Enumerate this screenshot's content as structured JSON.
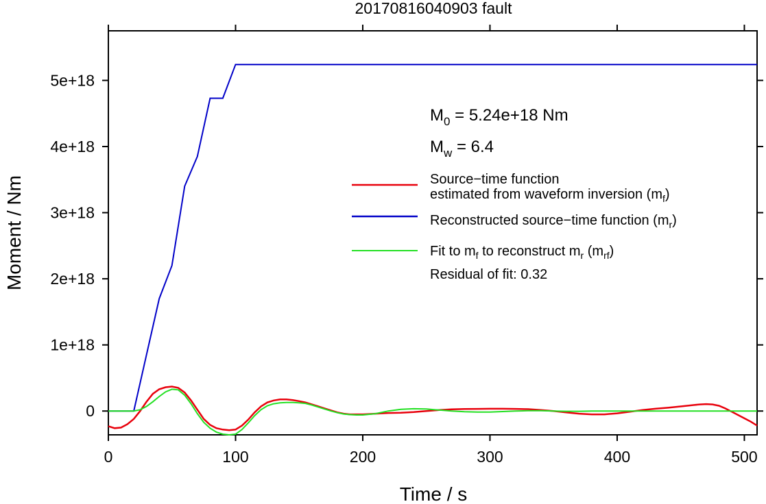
{
  "chart_data": {
    "type": "line",
    "title": "20170816040903 fault",
    "xlabel": "Time / s",
    "ylabel": "Moment / Nm",
    "xlim": [
      0,
      510
    ],
    "ylim": [
      -3.6e+17,
      5.75e+18
    ],
    "x_ticks": [
      0,
      100,
      200,
      300,
      400,
      500
    ],
    "x_tick_labels": [
      "0",
      "100",
      "200",
      "300",
      "400",
      "500"
    ],
    "y_ticks": [
      0,
      1e+18,
      2e+18,
      3e+18,
      4e+18,
      5e+18
    ],
    "y_tick_labels": [
      "0",
      "1e+18",
      "2e+18",
      "3e+18",
      "4e+18",
      "5e+18"
    ],
    "grid": false,
    "legend_position": "right",
    "annotations": {
      "m0": {
        "base": "M",
        "sub": "0",
        "text": " = 5.24e+18 Nm"
      },
      "mw": {
        "base": "M",
        "sub": "w",
        "text": " = 6.4"
      },
      "residual": "Residual of fit: 0.32"
    },
    "legend": [
      {
        "line1": "Source−time function",
        "line2": "estimated from waveform inversion (m",
        "sub": "f",
        "close": ")",
        "color": "#e8000b"
      },
      {
        "line1": "Reconstructed source−time function (m",
        "sub": "r",
        "close": ")",
        "color": "#0000c8"
      },
      {
        "line1": "Fit to m",
        "sub1": "f",
        "mid": " to reconstruct m",
        "sub2": "r",
        "mid2": " (m",
        "sub3": "rf",
        "close": ")",
        "color": "#22e022"
      }
    ],
    "series": [
      {
        "key": "mf",
        "color": "#e8000b",
        "x": [
          0,
          5,
          10,
          15,
          20,
          25,
          30,
          35,
          40,
          45,
          50,
          55,
          60,
          65,
          70,
          75,
          80,
          85,
          90,
          95,
          100,
          105,
          110,
          115,
          120,
          125,
          130,
          135,
          140,
          145,
          150,
          155,
          160,
          165,
          170,
          175,
          180,
          185,
          190,
          195,
          200,
          210,
          220,
          230,
          240,
          250,
          260,
          270,
          280,
          290,
          300,
          310,
          320,
          330,
          340,
          350,
          360,
          370,
          380,
          390,
          400,
          410,
          420,
          430,
          440,
          450,
          460,
          465,
          470,
          475,
          480,
          485,
          490,
          495,
          500,
          505,
          510
        ],
        "y": [
          -2.3e+17,
          -2.6e+17,
          -2.5e+17,
          -2e+17,
          -1.2e+17,
          0,
          1.4e+17,
          2.6e+17,
          3.3e+17,
          3.6e+17,
          3.7e+17,
          3.5e+17,
          2.8e+17,
          1.6e+17,
          2e+16,
          -1.2e+17,
          -2.1e+17,
          -2.6e+17,
          -2.8e+17,
          -2.9e+17,
          -2.8e+17,
          -2.2e+17,
          -1.3e+17,
          -2e+16,
          7e+16,
          1.3e+17,
          1.6e+17,
          1.75e+17,
          1.75e+17,
          1.65e+17,
          1.5e+17,
          1.3e+17,
          1e+17,
          7e+16,
          4e+16,
          1e+16,
          -2e+16,
          -4e+16,
          -5e+16,
          -5e+16,
          -5e+16,
          -4e+16,
          -3e+16,
          -2.5e+16,
          -1.5e+16,
          0,
          1.5e+16,
          2.5e+16,
          3e+16,
          3.3e+16,
          3.5e+16,
          3.5e+16,
          3.3e+16,
          2.8e+16,
          1.5e+16,
          0,
          -2e+16,
          -4e+16,
          -5e+16,
          -5e+16,
          -3.5e+16,
          -1e+16,
          1.5e+16,
          3.5e+16,
          5e+16,
          7e+16,
          9e+16,
          1e+17,
          1.05e+17,
          1e+17,
          8e+16,
          4e+16,
          -1e+16,
          -6e+16,
          -1.1e+17,
          -1.6e+17,
          -2.2e+17
        ]
      },
      {
        "key": "mr",
        "color": "#0000c8",
        "x": [
          0,
          20,
          30,
          40,
          50,
          60,
          70,
          80,
          90,
          100,
          510
        ],
        "y": [
          0,
          0,
          8.5e+17,
          1.7e+18,
          2.2e+18,
          3.4e+18,
          3.85e+18,
          4.73e+18,
          4.73e+18,
          5.24e+18,
          5.24e+18
        ]
      },
      {
        "key": "mrf",
        "color": "#22e022",
        "x": [
          0,
          20,
          25,
          30,
          35,
          40,
          45,
          50,
          55,
          60,
          65,
          70,
          75,
          80,
          85,
          90,
          95,
          100,
          105,
          110,
          115,
          120,
          125,
          130,
          135,
          140,
          145,
          150,
          155,
          160,
          165,
          170,
          175,
          180,
          185,
          190,
          195,
          200,
          210,
          220,
          230,
          240,
          250,
          260,
          270,
          280,
          290,
          300,
          310,
          320,
          330,
          340,
          350,
          360,
          370,
          380,
          390,
          400,
          420,
          450,
          480,
          510
        ],
        "y": [
          0,
          0,
          2e+16,
          7e+16,
          1.4e+17,
          2.2e+17,
          2.9e+17,
          3.3e+17,
          3.2e+17,
          2.4e+17,
          1.1e+17,
          -4e+16,
          -1.7e+17,
          -2.6e+17,
          -3.2e+17,
          -3.5e+17,
          -3.6e+17,
          -3.5e+17,
          -2.8e+17,
          -1.8e+17,
          -7e+16,
          2e+16,
          8e+16,
          1.1e+17,
          1.25e+17,
          1.3e+17,
          1.3e+17,
          1.25e+17,
          1.15e+17,
          9e+16,
          6e+16,
          3e+16,
          0,
          -2.5e+16,
          -4.5e+16,
          -5.5e+16,
          -6e+16,
          -6e+16,
          -4e+16,
          0,
          2.5e+16,
          3.5e+16,
          3e+16,
          1.5e+16,
          0,
          -1e+16,
          -1.5e+16,
          -1.5e+16,
          -8000000000000000.0,
          0,
          5000000000000000.0,
          5000000000000000.0,
          0,
          -4000000000000000.0,
          -4000000000000000.0,
          0,
          0,
          0,
          0,
          0,
          0,
          0
        ]
      }
    ]
  }
}
